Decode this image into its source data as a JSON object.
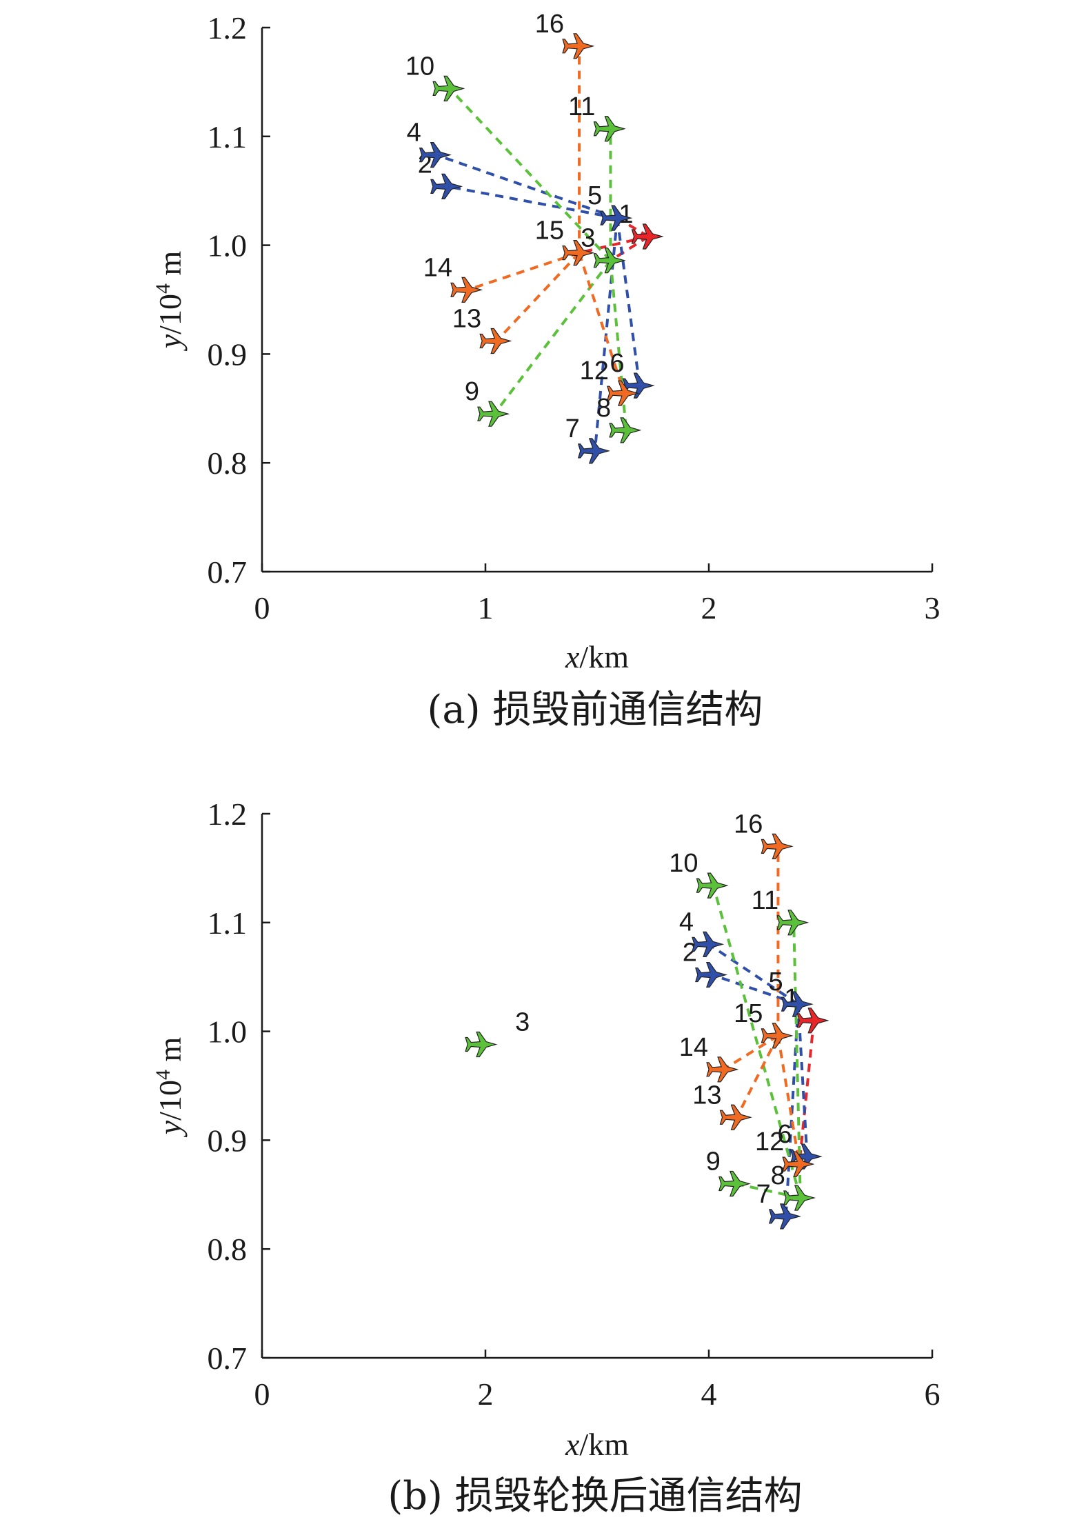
{
  "colors": {
    "red": "#e8262a",
    "blue": "#2f4fa8",
    "green": "#5cc13a",
    "orange": "#f06a22"
  },
  "chart_data": [
    {
      "type": "scatter",
      "caption": "(a) 损毁前通信结构",
      "xlabel": {
        "var": "x",
        "unit": "/km"
      },
      "ylabel": {
        "var": "y",
        "unit": "/10",
        "sup": "4",
        "tail": " m"
      },
      "xlim": [
        0,
        3
      ],
      "ylim": [
        0.7,
        1.2
      ],
      "xticks": [
        "0",
        "1",
        "2",
        "3"
      ],
      "yticks": [
        "0.7",
        "0.8",
        "0.9",
        "1.0",
        "1.1",
        "1.2"
      ],
      "nodes": [
        {
          "id": "1",
          "x": 1.73,
          "y": 1.008,
          "color": "red"
        },
        {
          "id": "2",
          "x": 0.83,
          "y": 1.054,
          "color": "blue"
        },
        {
          "id": "3",
          "x": 1.56,
          "y": 0.986,
          "color": "green"
        },
        {
          "id": "4",
          "x": 0.78,
          "y": 1.083,
          "color": "blue"
        },
        {
          "id": "5",
          "x": 1.59,
          "y": 1.025,
          "color": "blue"
        },
        {
          "id": "6",
          "x": 1.69,
          "y": 0.871,
          "color": "blue"
        },
        {
          "id": "7",
          "x": 1.49,
          "y": 0.811,
          "color": "blue"
        },
        {
          "id": "8",
          "x": 1.63,
          "y": 0.83,
          "color": "green"
        },
        {
          "id": "9",
          "x": 1.04,
          "y": 0.845,
          "color": "green"
        },
        {
          "id": "10",
          "x": 0.84,
          "y": 1.144,
          "color": "green"
        },
        {
          "id": "11",
          "x": 1.56,
          "y": 1.107,
          "color": "green"
        },
        {
          "id": "12",
          "x": 1.62,
          "y": 0.864,
          "color": "orange"
        },
        {
          "id": "13",
          "x": 1.05,
          "y": 0.912,
          "color": "orange"
        },
        {
          "id": "14",
          "x": 0.92,
          "y": 0.959,
          "color": "orange"
        },
        {
          "id": "15",
          "x": 1.42,
          "y": 0.993,
          "color": "orange"
        },
        {
          "id": "16",
          "x": 1.42,
          "y": 1.183,
          "color": "orange"
        }
      ],
      "links": [
        {
          "from": "1",
          "to": "15",
          "color": "red"
        },
        {
          "from": "1",
          "to": "3",
          "color": "red"
        },
        {
          "from": "1",
          "to": "5",
          "color": "red"
        },
        {
          "from": "5",
          "to": "4",
          "color": "blue"
        },
        {
          "from": "5",
          "to": "2",
          "color": "blue"
        },
        {
          "from": "5",
          "to": "6",
          "color": "blue"
        },
        {
          "from": "5",
          "to": "7",
          "color": "blue"
        },
        {
          "from": "3",
          "to": "10",
          "color": "green"
        },
        {
          "from": "3",
          "to": "11",
          "color": "green"
        },
        {
          "from": "3",
          "to": "9",
          "color": "green"
        },
        {
          "from": "3",
          "to": "8",
          "color": "green"
        },
        {
          "from": "15",
          "to": "16",
          "color": "orange"
        },
        {
          "from": "15",
          "to": "14",
          "color": "orange"
        },
        {
          "from": "15",
          "to": "13",
          "color": "orange"
        },
        {
          "from": "15",
          "to": "12",
          "color": "orange"
        }
      ]
    },
    {
      "type": "scatter",
      "caption": "(b) 损毁轮换后通信结构",
      "xlabel": {
        "var": "x",
        "unit": "/km"
      },
      "ylabel": {
        "var": "y",
        "unit": "/10",
        "sup": "4",
        "tail": " m"
      },
      "xlim": [
        0,
        6
      ],
      "ylim": [
        0.7,
        1.2
      ],
      "xticks": [
        "0",
        "2",
        "4",
        "6"
      ],
      "yticks": [
        "0.7",
        "0.8",
        "0.9",
        "1.0",
        "1.1",
        "1.2"
      ],
      "nodes": [
        {
          "id": "1",
          "x": 4.94,
          "y": 1.01,
          "color": "red"
        },
        {
          "id": "2",
          "x": 4.03,
          "y": 1.052,
          "color": "blue"
        },
        {
          "id": "3",
          "x": 1.97,
          "y": 0.988,
          "color": "green",
          "label_dx": 48
        },
        {
          "id": "4",
          "x": 4.0,
          "y": 1.08,
          "color": "blue"
        },
        {
          "id": "5",
          "x": 4.8,
          "y": 1.025,
          "color": "blue"
        },
        {
          "id": "6",
          "x": 4.88,
          "y": 0.885,
          "color": "blue"
        },
        {
          "id": "7",
          "x": 4.69,
          "y": 0.83,
          "color": "blue"
        },
        {
          "id": "8",
          "x": 4.82,
          "y": 0.847,
          "color": "green"
        },
        {
          "id": "9",
          "x": 4.24,
          "y": 0.86,
          "color": "green"
        },
        {
          "id": "10",
          "x": 4.04,
          "y": 1.134,
          "color": "green"
        },
        {
          "id": "11",
          "x": 4.76,
          "y": 1.1,
          "color": "green"
        },
        {
          "id": "12",
          "x": 4.81,
          "y": 0.878,
          "color": "orange"
        },
        {
          "id": "13",
          "x": 4.25,
          "y": 0.921,
          "color": "orange"
        },
        {
          "id": "14",
          "x": 4.13,
          "y": 0.965,
          "color": "orange"
        },
        {
          "id": "15",
          "x": 4.62,
          "y": 0.996,
          "color": "orange"
        },
        {
          "id": "16",
          "x": 4.62,
          "y": 1.17,
          "color": "orange"
        }
      ],
      "links": [
        {
          "from": "1",
          "to": "12",
          "color": "red"
        },
        {
          "from": "5",
          "to": "4",
          "color": "blue"
        },
        {
          "from": "5",
          "to": "2",
          "color": "blue"
        },
        {
          "from": "5",
          "to": "6",
          "color": "blue"
        },
        {
          "from": "5",
          "to": "7",
          "color": "blue"
        },
        {
          "from": "8",
          "to": "10",
          "color": "green"
        },
        {
          "from": "8",
          "to": "11",
          "color": "green"
        },
        {
          "from": "8",
          "to": "9",
          "color": "green"
        },
        {
          "from": "15",
          "to": "16",
          "color": "orange"
        },
        {
          "from": "15",
          "to": "14",
          "color": "orange"
        },
        {
          "from": "15",
          "to": "13",
          "color": "orange"
        },
        {
          "from": "15",
          "to": "12",
          "color": "orange"
        }
      ]
    }
  ]
}
